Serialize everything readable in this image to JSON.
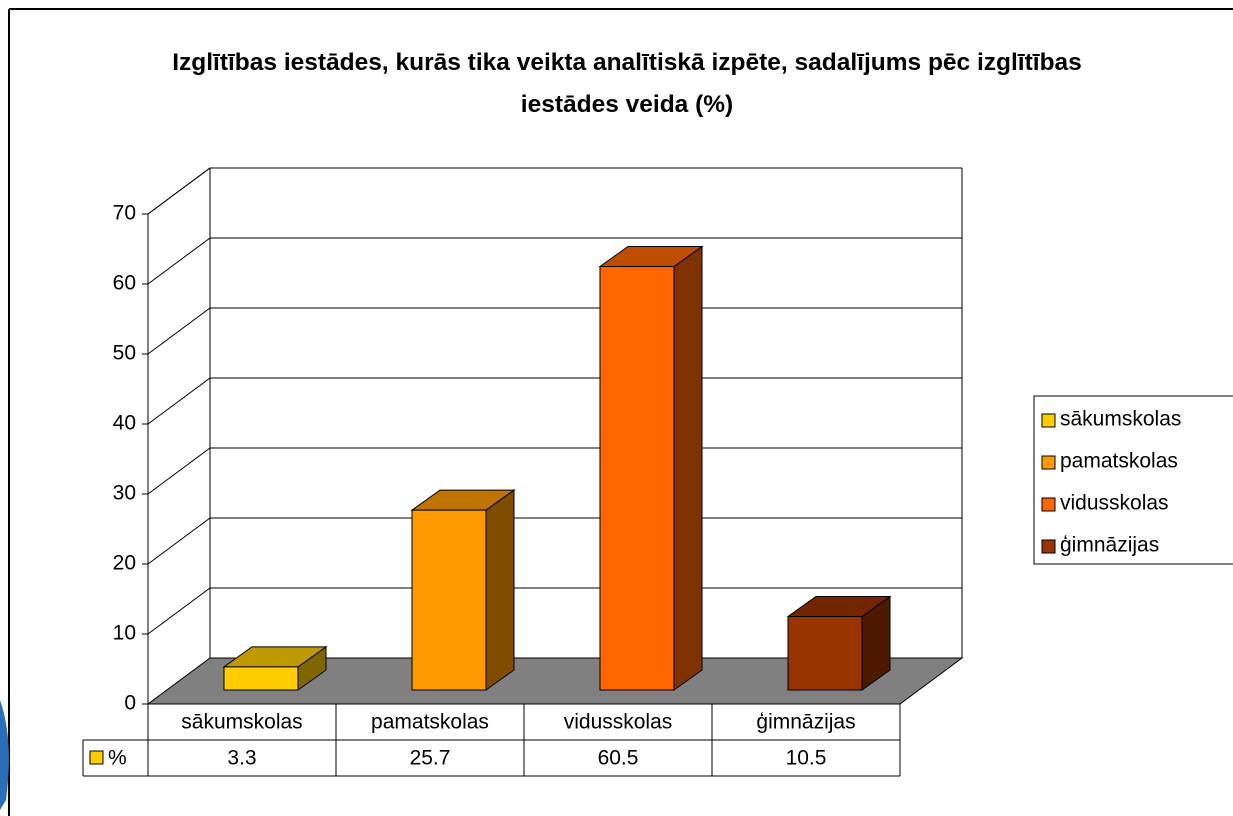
{
  "chart_data": {
    "type": "bar",
    "title": "Izglītības iestādes, kurās tika veikta analītiskā izpēte, sadalījums pēc izglītības iestādes veida (%)",
    "categories": [
      "sākumskolas",
      "pamatskolas",
      "vidusskolas",
      "ģimnāzijas"
    ],
    "series": [
      {
        "name": "%",
        "colors": [
          "#FFCC00",
          "#FF9900",
          "#FF6600",
          "#993300"
        ],
        "values": [
          3.3,
          25.7,
          60.5,
          10.5
        ]
      }
    ],
    "ylim": [
      0,
      70
    ],
    "yticks": [
      0,
      10,
      20,
      30,
      40,
      50,
      60,
      70
    ],
    "grid": true,
    "legend": "right",
    "data_table": true
  }
}
